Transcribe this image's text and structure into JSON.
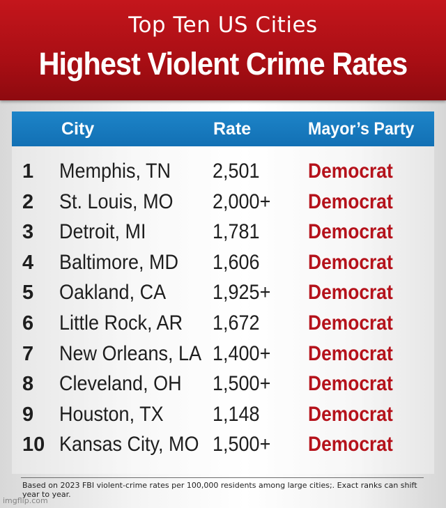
{
  "header": {
    "subtitle": "Top Ten US Cities",
    "title": "Highest Violent Crime Rates"
  },
  "table": {
    "columns": {
      "city": "City",
      "rate": "Rate",
      "party": "Mayor’s Party"
    },
    "rows": [
      {
        "rank": "1",
        "city": "Memphis, TN",
        "rate": "2,501",
        "party": "Democrat"
      },
      {
        "rank": "2",
        "city": "St. Louis, MO",
        "rate": "2,000+",
        "party": "Democrat"
      },
      {
        "rank": "3",
        "city": "Detroit, MI",
        "rate": "1,781",
        "party": "Democrat"
      },
      {
        "rank": "4",
        "city": "Baltimore, MD",
        "rate": "1,606",
        "party": "Democrat"
      },
      {
        "rank": "5",
        "city": "Oakland, CA",
        "rate": "1,925+",
        "party": "Democrat"
      },
      {
        "rank": "6",
        "city": "Little Rock, AR",
        "rate": "1,672",
        "party": "Democrat"
      },
      {
        "rank": "7",
        "city": "New Orleans, LA",
        "rate": "1,400+",
        "party": "Democrat"
      },
      {
        "rank": "8",
        "city": "Cleveland, OH",
        "rate": "1,500+",
        "party": "Democrat"
      },
      {
        "rank": "9",
        "city": "Houston, TX",
        "rate": "1,148",
        "party": "Democrat"
      },
      {
        "rank": "10",
        "city": "Kansas City, MO",
        "rate": "1,500+",
        "party": "Democrat"
      }
    ]
  },
  "footnote": "Based on 2023 FBI violent-crime rates per 100,000 residents among large cities;. Exact ranks can shift year to year.",
  "watermark": "imgflip.com",
  "colors": {
    "banner_red": "#b5121b",
    "header_blue": "#1779be",
    "party_red": "#b5121b"
  }
}
